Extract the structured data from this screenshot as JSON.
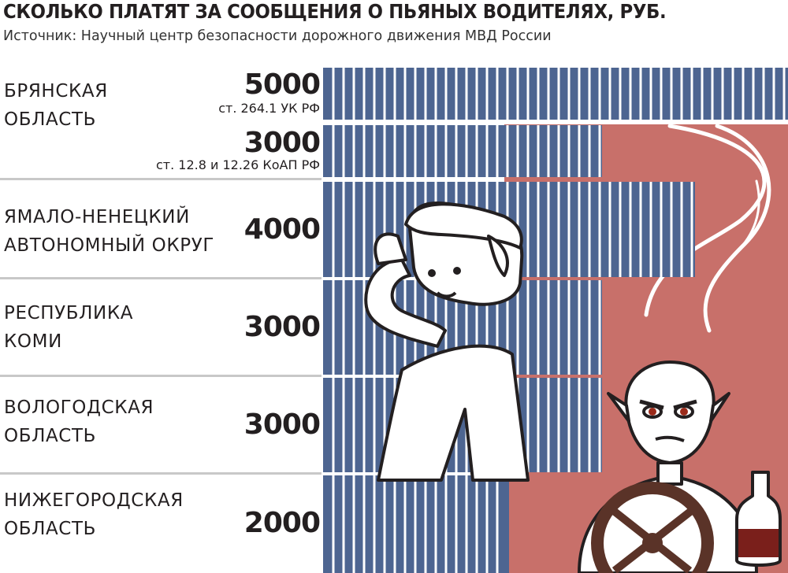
{
  "chart_data": {
    "type": "bar",
    "orientation": "horizontal",
    "title": "СКОЛЬКО ПЛАТЯТ ЗА СООБЩЕНИЯ О ПЬЯНЫХ ВОДИТЕЛЯХ, РУБ.",
    "subtitle": "Источник: Научный центр безопасности дорожного движения МВД России",
    "xlim": [
      0,
      5000
    ],
    "bar_color": "#4d6591",
    "background_color": "#c8706a",
    "rows": [
      {
        "region": [
          "БРЯНСКАЯ",
          "ОБЛАСТЬ"
        ],
        "bars": [
          {
            "value": 5000,
            "label": "5000",
            "note": "ст. 264.1 УК РФ"
          },
          {
            "value": 3000,
            "label": "3000",
            "note": "ст. 12.8 и 12.26 КоАП РФ"
          }
        ]
      },
      {
        "region": [
          "ЯМАЛО-НЕНЕЦКИЙ",
          "АВТОНОМНЫЙ ОКРУГ"
        ],
        "bars": [
          {
            "value": 4000,
            "label": "4000"
          }
        ]
      },
      {
        "region": [
          "РЕСПУБЛИКА",
          "КОМИ"
        ],
        "bars": [
          {
            "value": 3000,
            "label": "3000"
          }
        ]
      },
      {
        "region": [
          "ВОЛОГОДСКАЯ",
          "ОБЛАСТЬ"
        ],
        "bars": [
          {
            "value": 3000,
            "label": "3000"
          }
        ]
      },
      {
        "region": [
          "НИЖЕГОРОДСКАЯ",
          "ОБЛАСТЬ"
        ],
        "bars": [
          {
            "value": 2000,
            "label": "2000"
          }
        ]
      }
    ]
  }
}
